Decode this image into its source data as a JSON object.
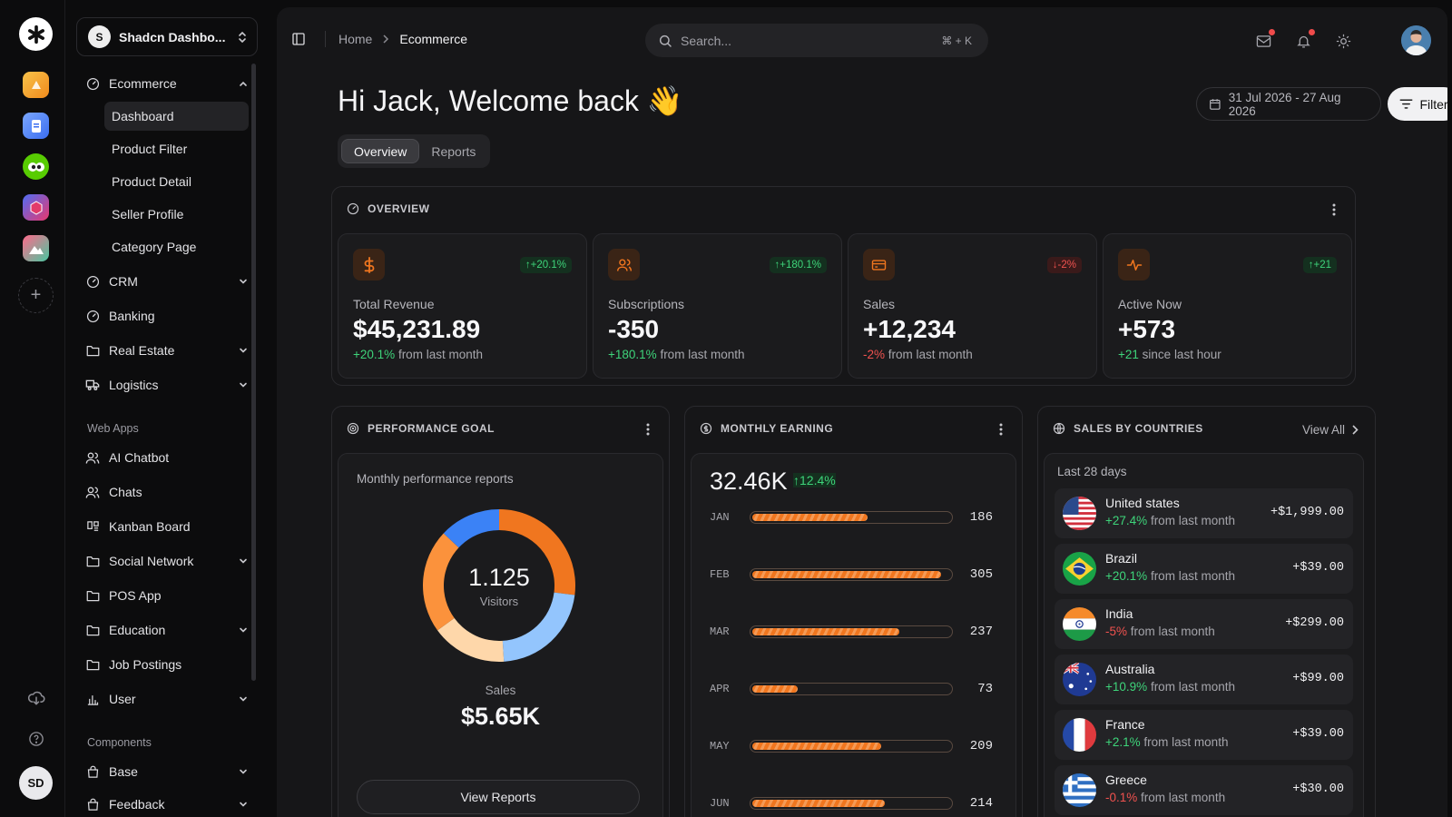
{
  "workspace": {
    "badge": "S",
    "name": "Shadcn Dashbo..."
  },
  "rail": {
    "avatar_initials": "SD"
  },
  "sidebar": {
    "groups": [
      {
        "label": "Ecommerce",
        "sub": [
          "Dashboard",
          "Product Filter",
          "Product Detail",
          "Seller Profile",
          "Category Page"
        ]
      },
      {
        "label": "CRM"
      },
      {
        "label": "Banking"
      },
      {
        "label": "Real Estate"
      },
      {
        "label": "Logistics"
      }
    ],
    "web_apps_label": "Web Apps",
    "web_apps": [
      "AI Chatbot",
      "Chats",
      "Kanban Board",
      "Social Network",
      "POS App",
      "Education",
      "Job Postings",
      "User"
    ],
    "components_label": "Components",
    "components": [
      "Base",
      "Feedback"
    ]
  },
  "header": {
    "breadcrumb": [
      "Home",
      "Ecommerce"
    ],
    "search_placeholder": "Search...",
    "search_shortcut": "⌘ + K"
  },
  "page": {
    "greeting": "Hi Jack, Welcome back 👋",
    "tabs": [
      "Overview",
      "Reports"
    ],
    "date_range": "31 Jul 2026 - 27 Aug 2026",
    "filter_label": "Filter"
  },
  "overview": {
    "title": "OVERVIEW",
    "stats": [
      {
        "label": "Total Revenue",
        "value": "$45,231.89",
        "badge": "+20.1%",
        "delta": "+20.1%",
        "suffix": "from last month",
        "direction": "up",
        "icon": "dollar-icon"
      },
      {
        "label": "Subscriptions",
        "value": "-350",
        "badge": "+180.1%",
        "delta": "+180.1%",
        "suffix": "from last month",
        "direction": "up",
        "icon": "users-icon"
      },
      {
        "label": "Sales",
        "value": "+12,234",
        "badge": "-2%",
        "delta": "-2%",
        "suffix": "from last month",
        "direction": "down",
        "icon": "credit-card-icon"
      },
      {
        "label": "Active Now",
        "value": "+573",
        "badge": "+21",
        "delta": "+21",
        "suffix": "since last hour",
        "direction": "up",
        "icon": "activity-icon"
      }
    ]
  },
  "performance": {
    "title": "PERFORMANCE GOAL",
    "subtitle": "Monthly performance reports",
    "center_value": "1.125",
    "center_label": "Visitors",
    "sales_label": "Sales",
    "sales_value": "$5.65K",
    "button": "View Reports",
    "segments": [
      {
        "share": 0.27,
        "color": "#f0761f"
      },
      {
        "share": 0.22,
        "color": "#93c5fd"
      },
      {
        "share": 0.16,
        "color": "#fed7aa"
      },
      {
        "share": 0.22,
        "color": "#fb923c"
      },
      {
        "share": 0.13,
        "color": "#3b82f6"
      }
    ]
  },
  "earning": {
    "title": "MONTHLY EARNING",
    "total": "32.46K",
    "delta": "12.4%",
    "max": 320
  },
  "chart_data": {
    "type": "bar",
    "categories": [
      "JAN",
      "FEB",
      "MAR",
      "APR",
      "MAY",
      "JUN"
    ],
    "values": [
      186,
      305,
      237,
      73,
      209,
      214
    ]
  },
  "countries": {
    "title": "SALES BY COUNTRIES",
    "view_all": "View All",
    "period": "Last 28 days",
    "items": [
      {
        "name": "United states",
        "delta": "+27.4%",
        "suffix": "from last month",
        "amount": "+$1,999.00",
        "direction": "up",
        "flag": "us-flag"
      },
      {
        "name": "Brazil",
        "delta": "+20.1%",
        "suffix": "from last month",
        "amount": "+$39.00",
        "direction": "up",
        "flag": "brazil-flag"
      },
      {
        "name": "India",
        "delta": "-5%",
        "suffix": "from last month",
        "amount": "+$299.00",
        "direction": "down",
        "flag": "india-flag"
      },
      {
        "name": "Australia",
        "delta": "+10.9%",
        "suffix": "from last month",
        "amount": "+$99.00",
        "direction": "up",
        "flag": "australia-flag"
      },
      {
        "name": "France",
        "delta": "+2.1%",
        "suffix": "from last month",
        "amount": "+$39.00",
        "direction": "up",
        "flag": "france-flag"
      },
      {
        "name": "Greece",
        "delta": "-0.1%",
        "suffix": "from last month",
        "amount": "+$30.00",
        "direction": "down",
        "flag": "greece-flag"
      }
    ]
  }
}
